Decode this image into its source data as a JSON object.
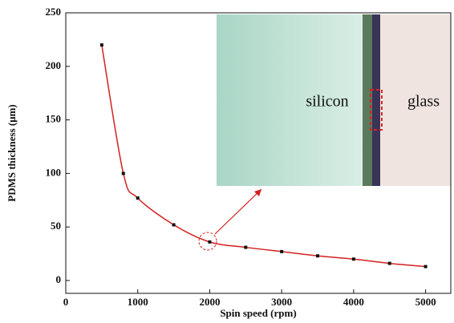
{
  "chart_data": {
    "type": "scatter",
    "x_label": "Spin speed (rpm)",
    "y_label": "PDMS thickness (μm)",
    "x": [
      500,
      800,
      1000,
      1500,
      2000,
      2500,
      3000,
      3500,
      4000,
      4500,
      5000
    ],
    "series": [
      {
        "color": "#111111",
        "line_color": "#d42020",
        "values": [
          220,
          100,
          77,
          52,
          36,
          31,
          27,
          23,
          20,
          16,
          13
        ]
      }
    ],
    "xlim": [
      0,
      5350
    ],
    "ylim": [
      -12,
      250
    ],
    "xticks": [
      0,
      1000,
      2000,
      3000,
      4000,
      5000
    ],
    "yticks": [
      0,
      50,
      100,
      150,
      200,
      250
    ],
    "annotations": [
      "silicon",
      "glass"
    ]
  }
}
